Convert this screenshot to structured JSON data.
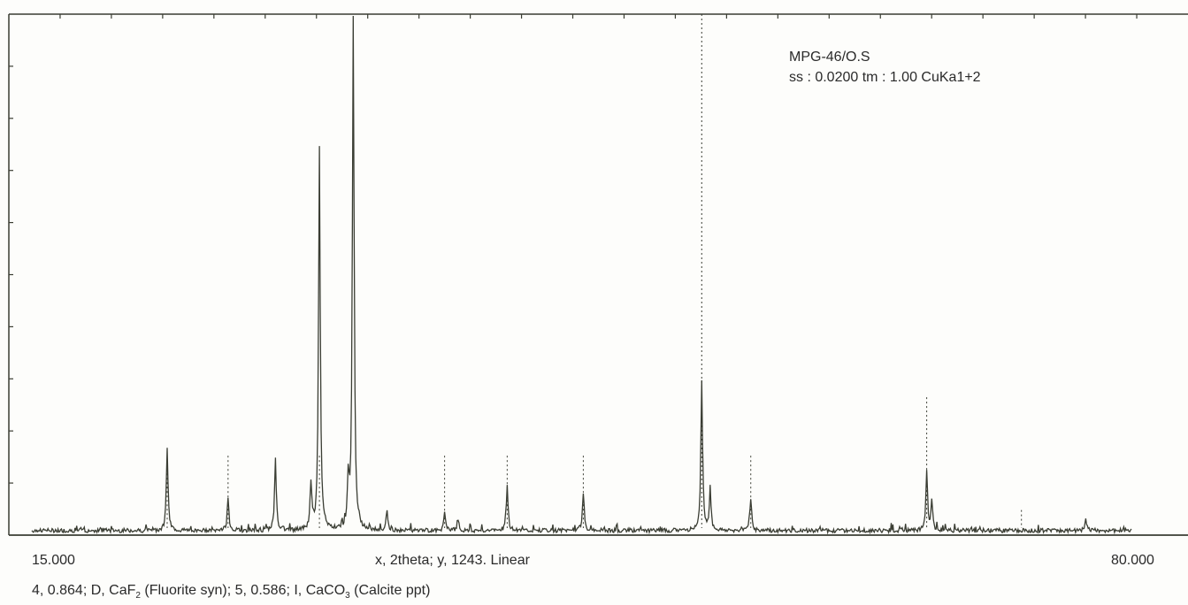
{
  "chart_data": {
    "type": "line",
    "annotation_line1": "MPG-46/O.S",
    "annotation_line2": "ss : 0.0200 tm :   1.00 CuKa1+2",
    "x_min_label": "15.000",
    "x_max_label": "80.000",
    "xlabel": "x, 2theta; y, 1243. Linear",
    "xlim": [
      15.0,
      80.0
    ],
    "ylim": [
      0,
      1243
    ],
    "peaks": [
      {
        "x": 23.0,
        "y": 200
      },
      {
        "x": 26.6,
        "y": 80
      },
      {
        "x": 29.4,
        "y": 175
      },
      {
        "x": 31.5,
        "y": 113
      },
      {
        "x": 32.0,
        "y": 915
      },
      {
        "x": 33.7,
        "y": 110
      },
      {
        "x": 34.0,
        "y": 1243
      },
      {
        "x": 36.0,
        "y": 45
      },
      {
        "x": 39.4,
        "y": 40
      },
      {
        "x": 40.2,
        "y": 25
      },
      {
        "x": 43.1,
        "y": 110
      },
      {
        "x": 47.6,
        "y": 90
      },
      {
        "x": 54.6,
        "y": 360
      },
      {
        "x": 55.1,
        "y": 100
      },
      {
        "x": 57.5,
        "y": 75
      },
      {
        "x": 67.9,
        "y": 145
      },
      {
        "x": 68.2,
        "y": 70
      },
      {
        "x": 77.3,
        "y": 25
      }
    ],
    "dotted_markers": [
      {
        "x": 23.0,
        "phase": "I"
      },
      {
        "x": 26.6,
        "phase": "I"
      },
      {
        "x": 32.0,
        "phase": "I"
      },
      {
        "x": 39.4,
        "phase": "I"
      },
      {
        "x": 43.1,
        "phase": "I"
      },
      {
        "x": 47.6,
        "phase": "I"
      },
      {
        "x": 54.6,
        "phase": "D"
      },
      {
        "x": 57.5,
        "phase": "I"
      },
      {
        "x": 67.9,
        "phase": "D"
      },
      {
        "x": 73.5,
        "phase": "I"
      }
    ]
  },
  "footer": {
    "p1": "4, 0.864; D, CaF",
    "s1": "2",
    "p2": " (Fluorite syn); 5, 0.586; I, CaCO",
    "s2": "3",
    "p3": " (Calcite ppt)"
  }
}
